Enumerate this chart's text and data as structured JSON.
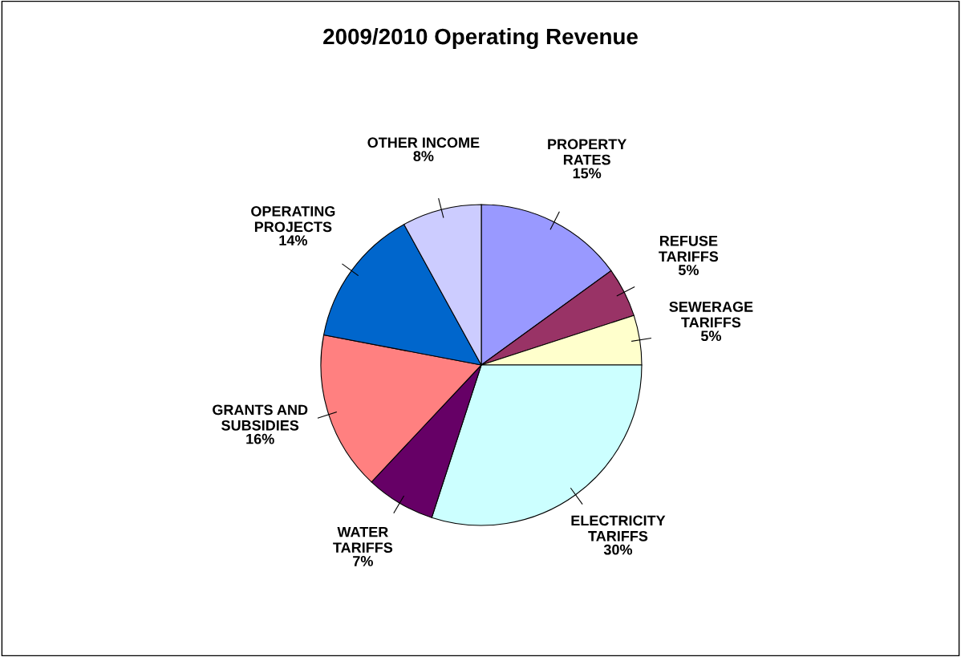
{
  "chart_data": {
    "type": "pie",
    "title": "2009/2010 Operating Revenue",
    "categories": [
      "PROPERTY\nRATES",
      "REFUSE\nTARIFFS",
      "SEWERAGE\nTARIFFS",
      "ELECTRICITY\nTARIFFS",
      "WATER\nTARIFFS",
      "GRANTS AND\nSUBSIDIES",
      "OPERATING\nPROJECTS",
      "OTHER INCOME"
    ],
    "values": [
      15,
      5,
      5,
      30,
      7,
      16,
      14,
      8
    ],
    "colors": [
      "#9999ff",
      "#993366",
      "#ffffcc",
      "#ccffff",
      "#660066",
      "#ff8080",
      "#0066cc",
      "#ccccff"
    ],
    "value_labels": [
      "15%",
      "5%",
      "5%",
      "30%",
      "7%",
      "16%",
      "14%",
      "8%"
    ],
    "legend": false
  }
}
